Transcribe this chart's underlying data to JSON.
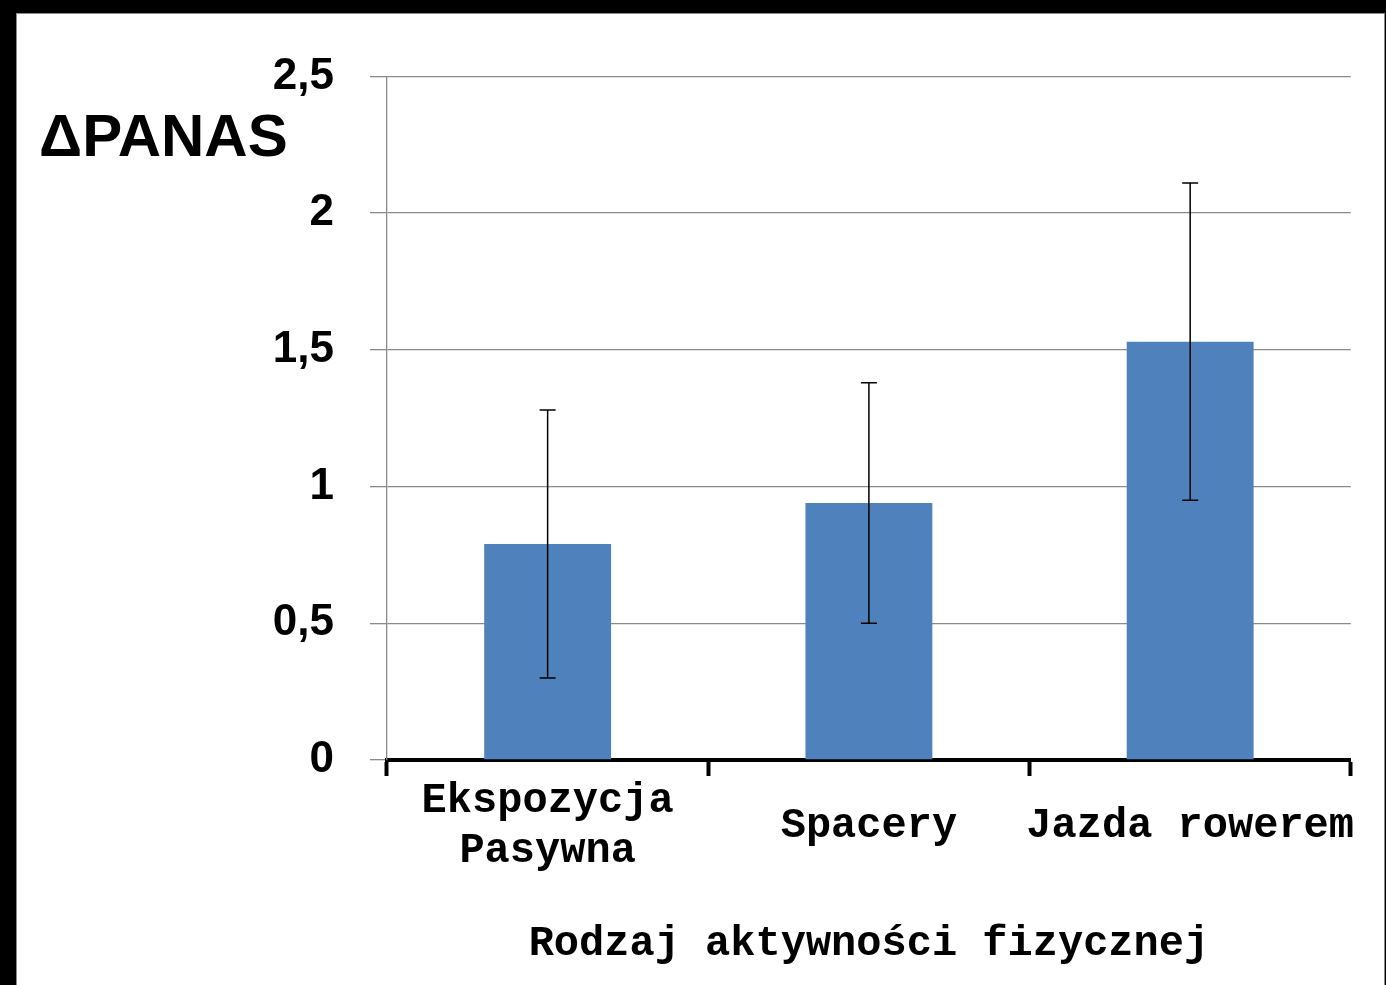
{
  "chart_data": {
    "type": "bar",
    "ylabel": "ΔPANAS",
    "xlabel": "Rodzaj aktywności fizycznej",
    "categories": [
      "Ekspozycja Pasywna",
      "Spacery",
      "Jazda rowerem"
    ],
    "values": [
      0.79,
      0.94,
      1.53
    ],
    "errors": [
      0.49,
      0.44,
      0.58
    ],
    "color": "#4f81bd",
    "ylim": [
      0,
      2.5
    ],
    "yticks": [
      0,
      {
        "value": 0.5,
        "label": "0,5"
      },
      1,
      {
        "value": 1.5,
        "label": "1,5"
      },
      2,
      {
        "value": 2.5,
        "label": "2,5"
      }
    ],
    "grid": "y"
  }
}
